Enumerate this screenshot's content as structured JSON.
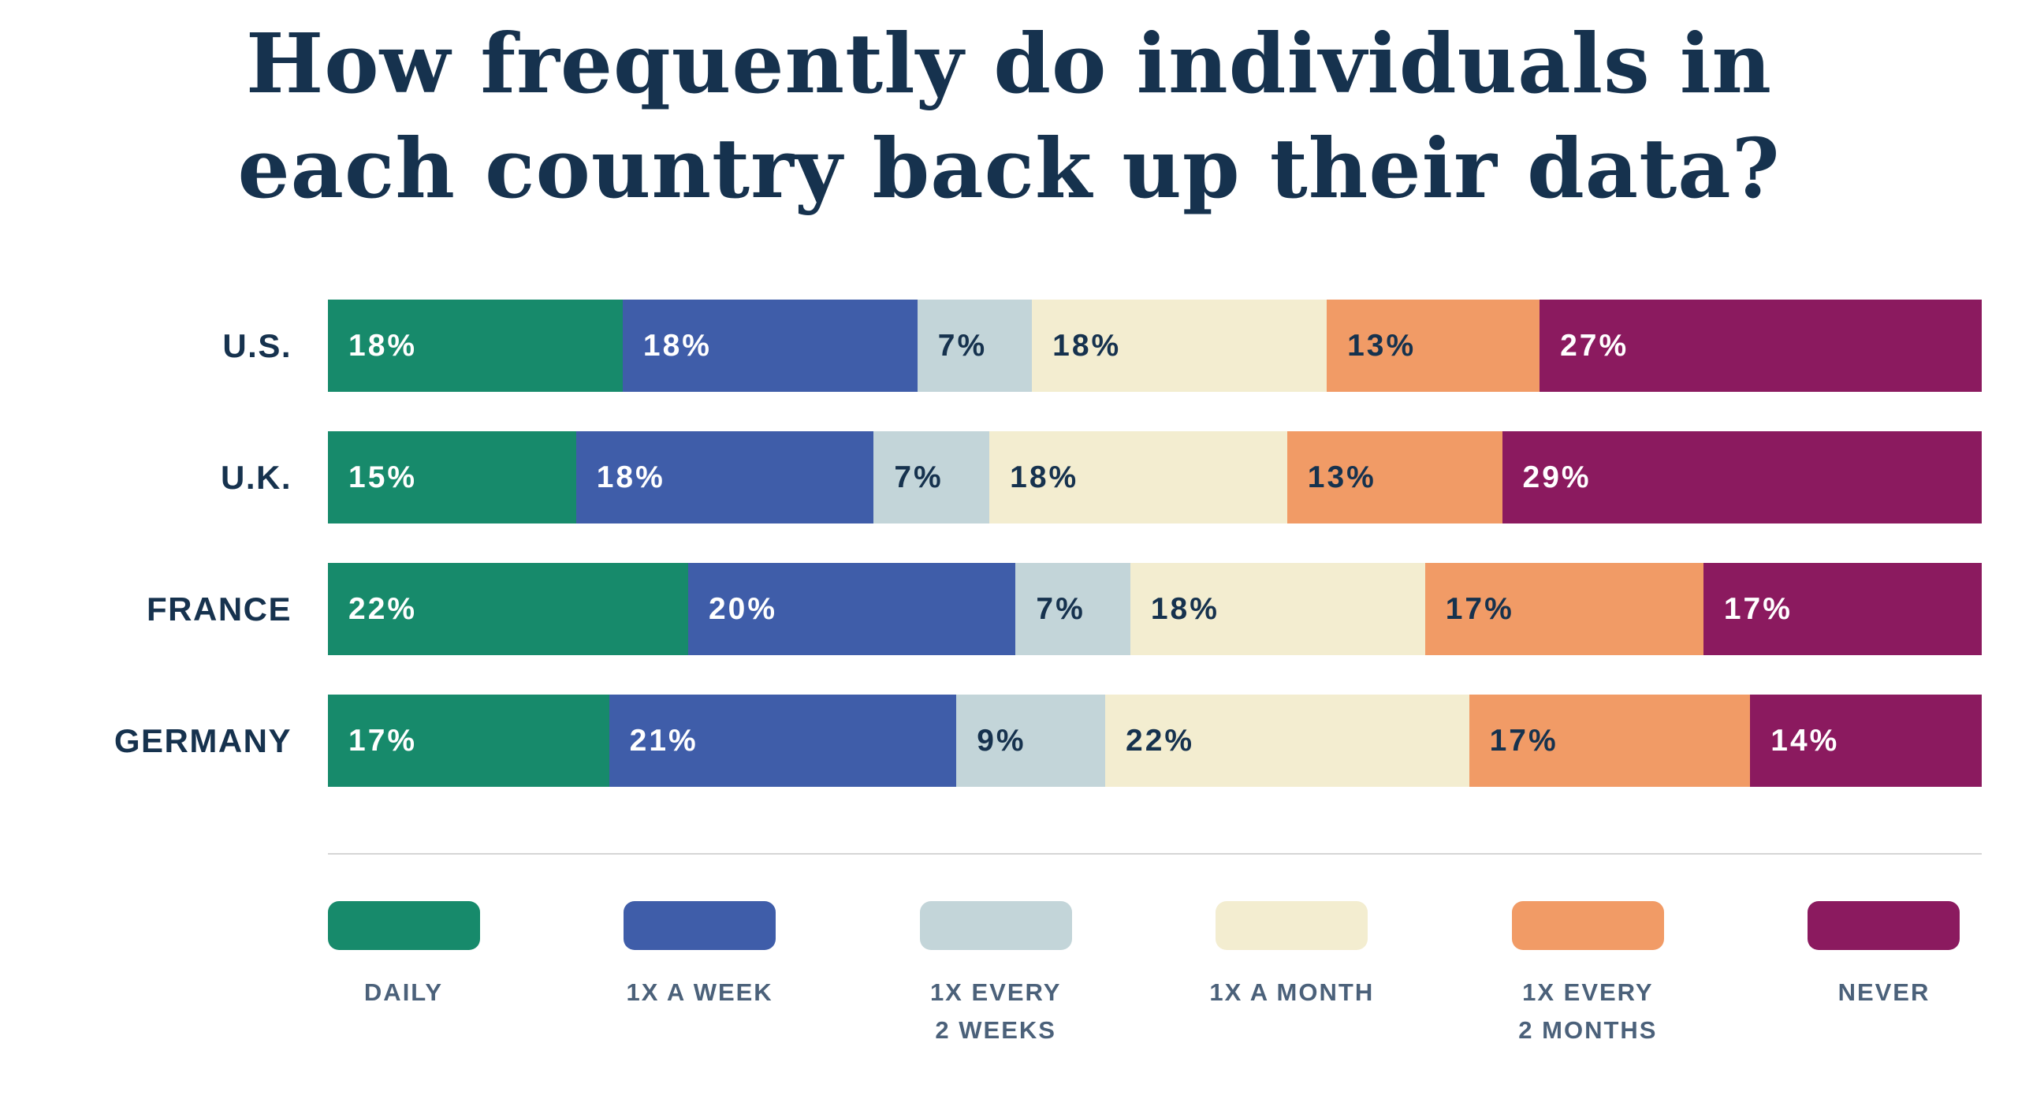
{
  "title": {
    "line1": "How frequently do individuals in",
    "line2": "each country back up their data?"
  },
  "chart_data": {
    "type": "bar",
    "stacked": true,
    "orientation": "horizontal",
    "unit": "%",
    "title": "How frequently do individuals in each country back up their data?",
    "categories": [
      "U.S.",
      "U.K.",
      "FRANCE",
      "GERMANY"
    ],
    "series": [
      {
        "name": "DAILY",
        "color": "#178A6B",
        "text_color": "#FFFFFF",
        "values": [
          18,
          15,
          22,
          17
        ]
      },
      {
        "name": "1X A WEEK",
        "color": "#3F5DA9",
        "text_color": "#FFFFFF",
        "values": [
          18,
          18,
          20,
          21
        ]
      },
      {
        "name": "1X EVERY 2 WEEKS",
        "color": "#C3D5D9",
        "text_color": "#16324E",
        "values": [
          7,
          7,
          7,
          9
        ]
      },
      {
        "name": "1X A MONTH",
        "color": "#F3EDD0",
        "text_color": "#16324E",
        "values": [
          18,
          18,
          18,
          22
        ]
      },
      {
        "name": "1X EVERY 2 MONTHS",
        "color": "#F19B66",
        "text_color": "#16324E",
        "values": [
          13,
          13,
          17,
          17
        ]
      },
      {
        "name": "NEVER",
        "color": "#8B1A5F",
        "text_color": "#FFFFFF",
        "values": [
          27,
          29,
          17,
          14
        ]
      }
    ],
    "legend_position": "bottom"
  },
  "legend": {
    "items": [
      {
        "label_lines": [
          "DAILY"
        ],
        "color": "#178A6B"
      },
      {
        "label_lines": [
          "1X A WEEK"
        ],
        "color": "#3F5DA9"
      },
      {
        "label_lines": [
          "1X EVERY",
          "2 WEEKS"
        ],
        "color": "#C3D5D9"
      },
      {
        "label_lines": [
          "1X A MONTH"
        ],
        "color": "#F3EDD0"
      },
      {
        "label_lines": [
          "1X EVERY",
          "2 MONTHS"
        ],
        "color": "#F19B66"
      },
      {
        "label_lines": [
          "NEVER"
        ],
        "color": "#8B1A5F"
      }
    ]
  }
}
